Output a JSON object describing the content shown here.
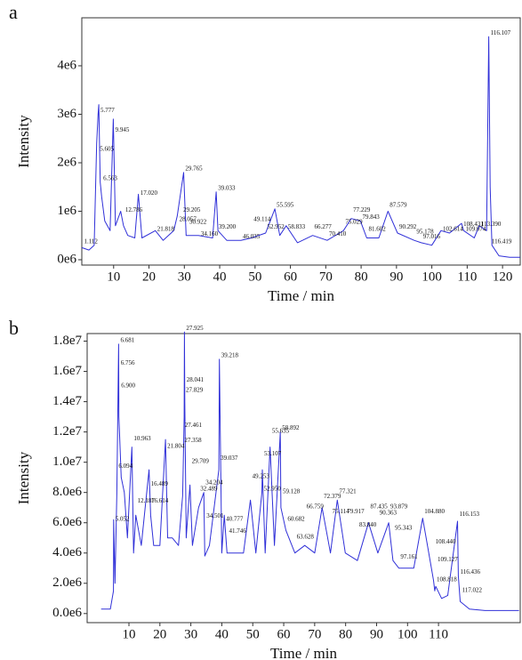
{
  "chart_data": [
    {
      "type": "line",
      "panel_label": "a",
      "xlabel": "Time / min",
      "ylabel": "Intensity",
      "x": [
        1,
        3,
        4.5,
        5.2,
        5.6,
        5.8,
        6.2,
        6.6,
        7.5,
        9,
        9.9,
        10.5,
        12,
        12.8,
        14,
        16,
        17,
        18,
        21.8,
        24,
        27,
        28,
        29.8,
        30.5,
        34,
        38,
        39,
        39.5,
        42,
        46,
        49,
        53,
        55.6,
        57,
        58.8,
        62,
        66.3,
        70.4,
        75,
        77.2,
        79.8,
        81.6,
        85,
        87.6,
        90.3,
        95,
        97,
        100,
        102.6,
        105,
        108.4,
        109,
        112,
        113.4,
        115.5,
        116.1,
        116.5,
        117,
        119,
        122,
        125
      ],
      "series": [
        {
          "color": "#3030d8",
          "values": [
            250000,
            200000,
            300000,
            2400000,
            3000000,
            3200000,
            1600000,
            1300000,
            800000,
            600000,
            2900000,
            700000,
            1000000,
            700000,
            500000,
            450000,
            1350000,
            450000,
            600000,
            400000,
            600000,
            900000,
            1800000,
            500000,
            500000,
            450000,
            1400000,
            600000,
            400000,
            400000,
            450000,
            550000,
            1050000,
            500000,
            700000,
            350000,
            500000,
            400000,
            600000,
            850000,
            800000,
            450000,
            450000,
            1000000,
            550000,
            400000,
            350000,
            300000,
            600000,
            550000,
            750000,
            600000,
            450000,
            700000,
            600000,
            4600000,
            1500000,
            300000,
            80000,
            50000,
            50000
          ]
        }
      ],
      "peaks": [
        {
          "x": 1.112,
          "y": 300000,
          "label": "1.112"
        },
        {
          "x": 5.605,
          "y": 2200000,
          "label": "5.605"
        },
        {
          "x": 5.777,
          "y": 3000000,
          "label": "5.777"
        },
        {
          "x": 6.563,
          "y": 1600000,
          "label": "6.563"
        },
        {
          "x": 9.945,
          "y": 2600000,
          "label": "9.945"
        },
        {
          "x": 12.786,
          "y": 950000,
          "label": "12.786"
        },
        {
          "x": 17.02,
          "y": 1300000,
          "label": "17.020"
        },
        {
          "x": 21.818,
          "y": 550000,
          "label": "21.818"
        },
        {
          "x": 29.205,
          "y": 950000,
          "label": "29.205"
        },
        {
          "x": 29.765,
          "y": 1800000,
          "label": "29.765"
        },
        {
          "x": 28.057,
          "y": 750000,
          "label": "28.057"
        },
        {
          "x": 30.922,
          "y": 700000,
          "label": "30.922"
        },
        {
          "x": 34.16,
          "y": 450000,
          "label": "34.160"
        },
        {
          "x": 39.033,
          "y": 1400000,
          "label": "39.033"
        },
        {
          "x": 39.2,
          "y": 600000,
          "label": "39.200"
        },
        {
          "x": 46.035,
          "y": 400000,
          "label": "46.035"
        },
        {
          "x": 49.114,
          "y": 750000,
          "label": "49.114"
        },
        {
          "x": 52.952,
          "y": 600000,
          "label": "52.952"
        },
        {
          "x": 55.595,
          "y": 1050000,
          "label": "55.595"
        },
        {
          "x": 58.833,
          "y": 600000,
          "label": "58.833"
        },
        {
          "x": 66.277,
          "y": 600000,
          "label": "66.277"
        },
        {
          "x": 70.41,
          "y": 450000,
          "label": "70.410"
        },
        {
          "x": 75.029,
          "y": 700000,
          "label": "75.029"
        },
        {
          "x": 77.229,
          "y": 950000,
          "label": "77.229"
        },
        {
          "x": 79.843,
          "y": 800000,
          "label": "79.843"
        },
        {
          "x": 81.602,
          "y": 550000,
          "label": "81.602"
        },
        {
          "x": 87.579,
          "y": 1050000,
          "label": "87.579"
        },
        {
          "x": 90.292,
          "y": 600000,
          "label": "90.292"
        },
        {
          "x": 95.178,
          "y": 500000,
          "label": "95.178"
        },
        {
          "x": 97.016,
          "y": 400000,
          "label": "97.016"
        },
        {
          "x": 102.614,
          "y": 550000,
          "label": "102.614"
        },
        {
          "x": 108.431,
          "y": 650000,
          "label": "108.431"
        },
        {
          "x": 109.074,
          "y": 550000,
          "label": "109.074"
        },
        {
          "x": 113.39,
          "y": 650000,
          "label": "113.390"
        },
        {
          "x": 116.107,
          "y": 4600000,
          "label": "116.107"
        },
        {
          "x": 116.419,
          "y": 300000,
          "label": "116.419"
        }
      ],
      "xlim": [
        1,
        125
      ],
      "ylim": [
        -110000,
        4990000
      ],
      "xticks": [
        10,
        20,
        30,
        40,
        50,
        60,
        70,
        80,
        90,
        100,
        110,
        120
      ],
      "yticks": [
        {
          "value": 0,
          "label": "0e6"
        },
        {
          "value": 1000000,
          "label": "1e6"
        },
        {
          "value": 2000000,
          "label": "2e6"
        },
        {
          "value": 3000000,
          "label": "3e6"
        },
        {
          "value": 4000000,
          "label": "4e6"
        }
      ]
    },
    {
      "type": "line",
      "panel_label": "b",
      "xlabel": "Time / min",
      "ylabel": "Intensity",
      "x": [
        1,
        4,
        5,
        5.05,
        5.5,
        6.1,
        6.68,
        6.76,
        7.5,
        8.5,
        9.5,
        10.96,
        11.5,
        12.2,
        14,
        16.5,
        17,
        18,
        20,
        21.8,
        22.5,
        24,
        26,
        27.36,
        27.46,
        27.83,
        27.93,
        28.04,
        28.5,
        29.7,
        30.5,
        32.5,
        34.2,
        34.5,
        36,
        39.04,
        39.22,
        40,
        40.8,
        41.7,
        44,
        47,
        49.25,
        51,
        52.95,
        53.1,
        54,
        55.6,
        57,
        58.9,
        59.1,
        60.7,
        63.6,
        66.8,
        70,
        72.4,
        75.1,
        77.3,
        79.9,
        83.8,
        87.4,
        90.4,
        93.9,
        95.3,
        97.2,
        100,
        102,
        104.9,
        106,
        108.4,
        108.8,
        109.1,
        111,
        113,
        116.15,
        116.4,
        117,
        120,
        125,
        130,
        136
      ],
      "series": [
        {
          "color": "#3030d8",
          "values": [
            300000,
            300000,
            1500000,
            6200000,
            2000000,
            8000000,
            17800000,
            13000000,
            9000000,
            8000000,
            5000000,
            11000000,
            4000000,
            6500000,
            4500000,
            9500000,
            6500000,
            4500000,
            4500000,
            11500000,
            5000000,
            5000000,
            4500000,
            7800000,
            9000000,
            13000000,
            18600000,
            14000000,
            5000000,
            8500000,
            4500000,
            7000000,
            8000000,
            3800000,
            4500000,
            9500000,
            16800000,
            4000000,
            6500000,
            4000000,
            4000000,
            4000000,
            7500000,
            4000000,
            8000000,
            9500000,
            4000000,
            11000000,
            4500000,
            12000000,
            7000000,
            5500000,
            4000000,
            4500000,
            4000000,
            7000000,
            4000000,
            7500000,
            4000000,
            3500000,
            6000000,
            4000000,
            6000000,
            3500000,
            3000000,
            3000000,
            3000000,
            6300000,
            5000000,
            2200000,
            1500000,
            1800000,
            1000000,
            1200000,
            6100000,
            2500000,
            800000,
            300000,
            200000,
            200000,
            200000
          ]
        }
      ],
      "peaks": [
        {
          "x": 5.052,
          "y": 6000000,
          "label": "5.052"
        },
        {
          "x": 6.094,
          "y": 9500000,
          "label": "6.094"
        },
        {
          "x": 6.681,
          "y": 17800000,
          "label": "6.681"
        },
        {
          "x": 6.756,
          "y": 16300000,
          "label": "6.756"
        },
        {
          "x": 6.9,
          "y": 14800000,
          "label": "6.900"
        },
        {
          "x": 10.963,
          "y": 11300000,
          "label": "10.963"
        },
        {
          "x": 12.187,
          "y": 7200000,
          "label": "12.187"
        },
        {
          "x": 16.489,
          "y": 8300000,
          "label": "16.489"
        },
        {
          "x": 16.614,
          "y": 7200000,
          "label": "16.614"
        },
        {
          "x": 21.804,
          "y": 10800000,
          "label": "21.804"
        },
        {
          "x": 27.925,
          "y": 18600000,
          "label": "27.925"
        },
        {
          "x": 28.041,
          "y": 15200000,
          "label": "28.041"
        },
        {
          "x": 27.829,
          "y": 14500000,
          "label": "27.829"
        },
        {
          "x": 27.461,
          "y": 12200000,
          "label": "27.461"
        },
        {
          "x": 27.358,
          "y": 11200000,
          "label": "27.358"
        },
        {
          "x": 29.709,
          "y": 9800000,
          "label": "29.709"
        },
        {
          "x": 32.489,
          "y": 8000000,
          "label": "32.489"
        },
        {
          "x": 34.204,
          "y": 8400000,
          "label": "34.204"
        },
        {
          "x": 34.501,
          "y": 6200000,
          "label": "34.501"
        },
        {
          "x": 39.218,
          "y": 16800000,
          "label": "39.218"
        },
        {
          "x": 39.037,
          "y": 10000000,
          "label": "39.037"
        },
        {
          "x": 40.777,
          "y": 6000000,
          "label": "40.777"
        },
        {
          "x": 41.746,
          "y": 5200000,
          "label": "41.746"
        },
        {
          "x": 49.253,
          "y": 8800000,
          "label": "49.253"
        },
        {
          "x": 52.95,
          "y": 8000000,
          "label": "52.950"
        },
        {
          "x": 53.107,
          "y": 10300000,
          "label": "53.107"
        },
        {
          "x": 55.635,
          "y": 11800000,
          "label": "55.635"
        },
        {
          "x": 58.892,
          "y": 12000000,
          "label": "58.892"
        },
        {
          "x": 59.128,
          "y": 7800000,
          "label": "59.128"
        },
        {
          "x": 60.682,
          "y": 6000000,
          "label": "60.682"
        },
        {
          "x": 63.628,
          "y": 4800000,
          "label": "63.628"
        },
        {
          "x": 66.759,
          "y": 6800000,
          "label": "66.759"
        },
        {
          "x": 72.379,
          "y": 7500000,
          "label": "72.379"
        },
        {
          "x": 75.114,
          "y": 6500000,
          "label": "75.114"
        },
        {
          "x": 77.321,
          "y": 7800000,
          "label": "77.321"
        },
        {
          "x": 79.917,
          "y": 6500000,
          "label": "79.917"
        },
        {
          "x": 83.84,
          "y": 5600000,
          "label": "83.840"
        },
        {
          "x": 87.435,
          "y": 6800000,
          "label": "87.435"
        },
        {
          "x": 90.363,
          "y": 6400000,
          "label": "90.363"
        },
        {
          "x": 93.879,
          "y": 6800000,
          "label": "93.879"
        },
        {
          "x": 95.343,
          "y": 5400000,
          "label": "95.343"
        },
        {
          "x": 97.161,
          "y": 3500000,
          "label": "97.161"
        },
        {
          "x": 104.88,
          "y": 6500000,
          "label": "104.880"
        },
        {
          "x": 108.44,
          "y": 4500000,
          "label": "108.440"
        },
        {
          "x": 109.127,
          "y": 3300000,
          "label": "109.127"
        },
        {
          "x": 108.818,
          "y": 2000000,
          "label": "108.818"
        },
        {
          "x": 116.153,
          "y": 6300000,
          "label": "116.153"
        },
        {
          "x": 116.436,
          "y": 2500000,
          "label": "116.436"
        },
        {
          "x": 117.022,
          "y": 1300000,
          "label": "117.022"
        }
      ],
      "xlim": [
        -3.5,
        136.4
      ],
      "ylim": [
        -600000,
        18500000
      ],
      "xticks": [
        10,
        20,
        30,
        40,
        50,
        60,
        70,
        80,
        90,
        100,
        110
      ],
      "yticks": [
        {
          "value": 0,
          "label": "0.0e6"
        },
        {
          "value": 2000000,
          "label": "2.0e6"
        },
        {
          "value": 4000000,
          "label": "4.0e6"
        },
        {
          "value": 6000000,
          "label": "6.0e6"
        },
        {
          "value": 8000000,
          "label": "8.0e6"
        },
        {
          "value": 10000000,
          "label": "1.0e7"
        },
        {
          "value": 12000000,
          "label": "1.2e7"
        },
        {
          "value": 14000000,
          "label": "1.4e7"
        },
        {
          "value": 16000000,
          "label": "1.6e7"
        },
        {
          "value": 18000000,
          "label": "1.8e7"
        }
      ]
    }
  ]
}
